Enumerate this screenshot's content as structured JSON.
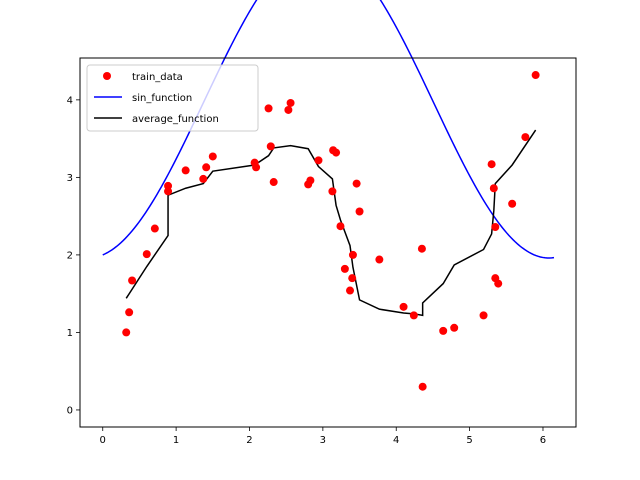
{
  "chart_data": {
    "type": "scatter",
    "title": "",
    "xlabel": "",
    "ylabel": "",
    "xlim": [
      -0.31,
      6.45
    ],
    "ylim": [
      -0.22,
      4.54
    ],
    "x_ticks": [
      0,
      1,
      2,
      3,
      4,
      5,
      6
    ],
    "y_ticks": [
      0,
      1,
      2,
      3,
      4
    ],
    "grid": false,
    "legend_position": "top-left",
    "series": [
      {
        "name": "train_data",
        "kind": "scatter",
        "color": "#ff0000",
        "points": [
          [
            0.32,
            1.0
          ],
          [
            0.36,
            1.26
          ],
          [
            0.4,
            1.67
          ],
          [
            0.6,
            2.01
          ],
          [
            0.71,
            2.34
          ],
          [
            0.89,
            2.82
          ],
          [
            0.89,
            2.89
          ],
          [
            1.13,
            3.09
          ],
          [
            1.37,
            2.98
          ],
          [
            1.41,
            3.13
          ],
          [
            1.5,
            3.27
          ],
          [
            2.07,
            3.19
          ],
          [
            2.09,
            3.13
          ],
          [
            2.26,
            3.89
          ],
          [
            2.29,
            3.4
          ],
          [
            2.33,
            2.94
          ],
          [
            2.53,
            3.87
          ],
          [
            2.56,
            3.96
          ],
          [
            2.8,
            2.91
          ],
          [
            2.83,
            2.96
          ],
          [
            2.94,
            3.22
          ],
          [
            3.13,
            2.82
          ],
          [
            3.14,
            3.35
          ],
          [
            3.18,
            3.32
          ],
          [
            3.24,
            2.37
          ],
          [
            3.3,
            1.82
          ],
          [
            3.37,
            1.54
          ],
          [
            3.4,
            1.7
          ],
          [
            3.41,
            2.0
          ],
          [
            3.46,
            2.92
          ],
          [
            3.5,
            2.56
          ],
          [
            3.77,
            1.94
          ],
          [
            4.1,
            1.33
          ],
          [
            4.24,
            1.22
          ],
          [
            4.35,
            2.08
          ],
          [
            4.36,
            0.3
          ],
          [
            4.64,
            1.02
          ],
          [
            4.79,
            1.06
          ],
          [
            5.19,
            1.22
          ],
          [
            5.3,
            3.17
          ],
          [
            5.33,
            2.86
          ],
          [
            5.35,
            2.36
          ],
          [
            5.35,
            1.7
          ],
          [
            5.39,
            1.63
          ],
          [
            5.58,
            2.66
          ],
          [
            5.76,
            3.52
          ],
          [
            5.9,
            4.32
          ]
        ]
      },
      {
        "name": "sin_function",
        "kind": "line",
        "color": "#0000ff",
        "function": "2 + 2*sin(x - 1.37) + 2*sin(1.37)",
        "x_range": [
          0,
          6.15
        ]
      },
      {
        "name": "average_function",
        "kind": "line",
        "color": "#000000",
        "points": [
          [
            0.32,
            1.44
          ],
          [
            0.6,
            1.85
          ],
          [
            0.89,
            2.25
          ],
          [
            0.89,
            2.77
          ],
          [
            1.13,
            2.86
          ],
          [
            1.37,
            2.92
          ],
          [
            1.5,
            3.08
          ],
          [
            2.07,
            3.16
          ],
          [
            2.26,
            3.28
          ],
          [
            2.33,
            3.38
          ],
          [
            2.56,
            3.41
          ],
          [
            2.8,
            3.37
          ],
          [
            2.94,
            3.14
          ],
          [
            3.13,
            2.98
          ],
          [
            3.18,
            2.64
          ],
          [
            3.24,
            2.45
          ],
          [
            3.37,
            2.12
          ],
          [
            3.41,
            1.84
          ],
          [
            3.5,
            1.42
          ],
          [
            3.77,
            1.3
          ],
          [
            4.1,
            1.25
          ],
          [
            4.24,
            1.24
          ],
          [
            4.36,
            1.22
          ],
          [
            4.36,
            1.38
          ],
          [
            4.64,
            1.63
          ],
          [
            4.79,
            1.87
          ],
          [
            5.19,
            2.07
          ],
          [
            5.3,
            2.27
          ],
          [
            5.33,
            2.57
          ],
          [
            5.35,
            2.92
          ],
          [
            5.58,
            3.16
          ],
          [
            5.9,
            3.61
          ]
        ]
      }
    ]
  }
}
